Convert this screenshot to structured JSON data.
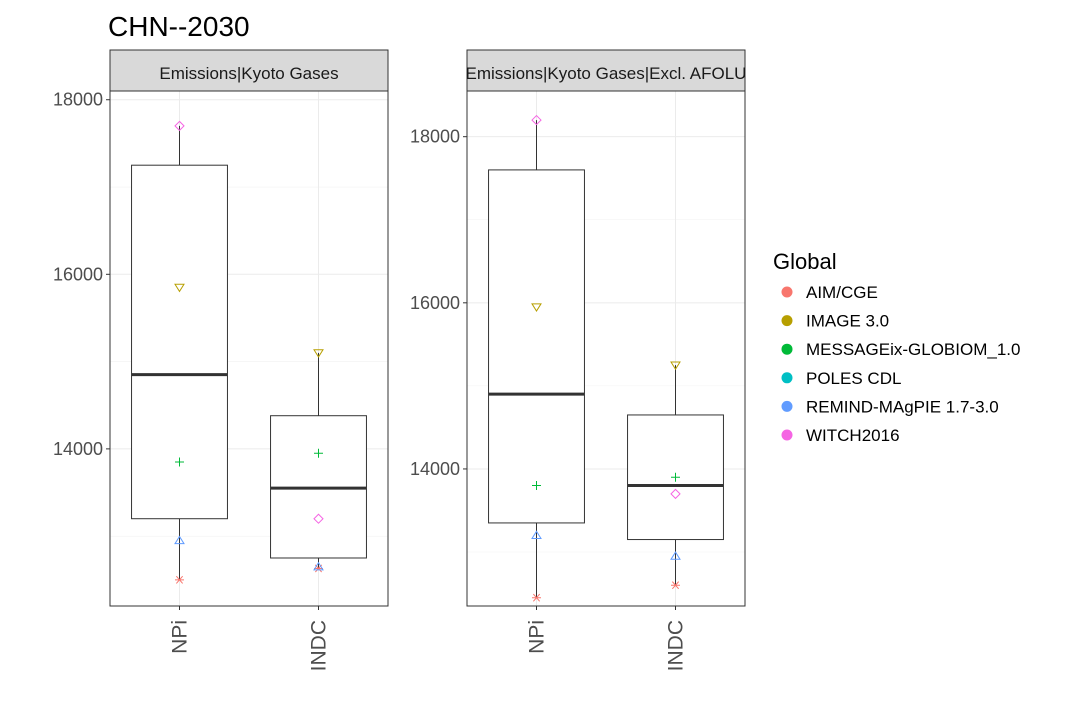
{
  "chart_data": {
    "type": "box",
    "title": "CHN--2030",
    "legend": {
      "title": "Global",
      "position": "right",
      "entries": [
        {
          "label": "AIM/CGE",
          "color": "#F8766D",
          "shape": "asterisk"
        },
        {
          "label": "IMAGE 3.0",
          "color": "#B79F00",
          "shape": "triangle-down"
        },
        {
          "label": "MESSAGEix-GLOBIOM_1.0",
          "color": "#00BA38",
          "shape": "plus"
        },
        {
          "label": "POLES CDL",
          "color": "#00BFC4",
          "shape": "square"
        },
        {
          "label": "REMIND-MAgPIE 1.7-3.0",
          "color": "#619CFF",
          "shape": "triangle-up"
        },
        {
          "label": "WITCH2016",
          "color": "#F564E3",
          "shape": "diamond"
        }
      ]
    },
    "panels": [
      {
        "strip": "Emissions|Kyoto Gases",
        "ylim": [
          12200,
          18100
        ],
        "yticks": [
          14000,
          16000,
          18000
        ],
        "categories": [
          "NPi",
          "INDC"
        ],
        "boxes": [
          {
            "category": "NPi",
            "q1": 13200,
            "median": 14850,
            "q3": 17250,
            "whisker_low": 12500,
            "whisker_high": 17700
          },
          {
            "category": "INDC",
            "q1": 12750,
            "median": 13550,
            "q3": 14380,
            "whisker_low": 12630,
            "whisker_high": 15100
          }
        ],
        "points": [
          {
            "category": "NPi",
            "model": "AIM/CGE",
            "value": 12500
          },
          {
            "category": "NPi",
            "model": "IMAGE 3.0",
            "value": 15850
          },
          {
            "category": "NPi",
            "model": "MESSAGEix-GLOBIOM_1.0",
            "value": 13850
          },
          {
            "category": "NPi",
            "model": "REMIND-MAgPIE 1.7-3.0",
            "value": 12950
          },
          {
            "category": "NPi",
            "model": "WITCH2016",
            "value": 17700
          },
          {
            "category": "INDC",
            "model": "AIM/CGE",
            "value": 12630
          },
          {
            "category": "INDC",
            "model": "IMAGE 3.0",
            "value": 15100
          },
          {
            "category": "INDC",
            "model": "MESSAGEix-GLOBIOM_1.0",
            "value": 13950
          },
          {
            "category": "INDC",
            "model": "REMIND-MAgPIE 1.7-3.0",
            "value": 12650
          },
          {
            "category": "INDC",
            "model": "WITCH2016",
            "value": 13200
          }
        ]
      },
      {
        "strip": "Emissions|Kyoto Gases|Excl. AFOLU",
        "ylim": [
          12350,
          18550
        ],
        "yticks": [
          14000,
          16000,
          18000
        ],
        "categories": [
          "NPi",
          "INDC"
        ],
        "boxes": [
          {
            "category": "NPi",
            "q1": 13350,
            "median": 14900,
            "q3": 17600,
            "whisker_low": 12450,
            "whisker_high": 18200
          },
          {
            "category": "INDC",
            "q1": 13150,
            "median": 13800,
            "q3": 14650,
            "whisker_low": 12600,
            "whisker_high": 15250
          }
        ],
        "points": [
          {
            "category": "NPi",
            "model": "AIM/CGE",
            "value": 12450
          },
          {
            "category": "NPi",
            "model": "IMAGE 3.0",
            "value": 15950
          },
          {
            "category": "NPi",
            "model": "MESSAGEix-GLOBIOM_1.0",
            "value": 13800
          },
          {
            "category": "NPi",
            "model": "REMIND-MAgPIE 1.7-3.0",
            "value": 13200
          },
          {
            "category": "NPi",
            "model": "WITCH2016",
            "value": 18200
          },
          {
            "category": "INDC",
            "model": "AIM/CGE",
            "value": 12600
          },
          {
            "category": "INDC",
            "model": "IMAGE 3.0",
            "value": 15250
          },
          {
            "category": "INDC",
            "model": "MESSAGEix-GLOBIOM_1.0",
            "value": 13900
          },
          {
            "category": "INDC",
            "model": "REMIND-MAgPIE 1.7-3.0",
            "value": 12950
          },
          {
            "category": "INDC",
            "model": "WITCH2016",
            "value": 13700
          }
        ]
      }
    ]
  }
}
